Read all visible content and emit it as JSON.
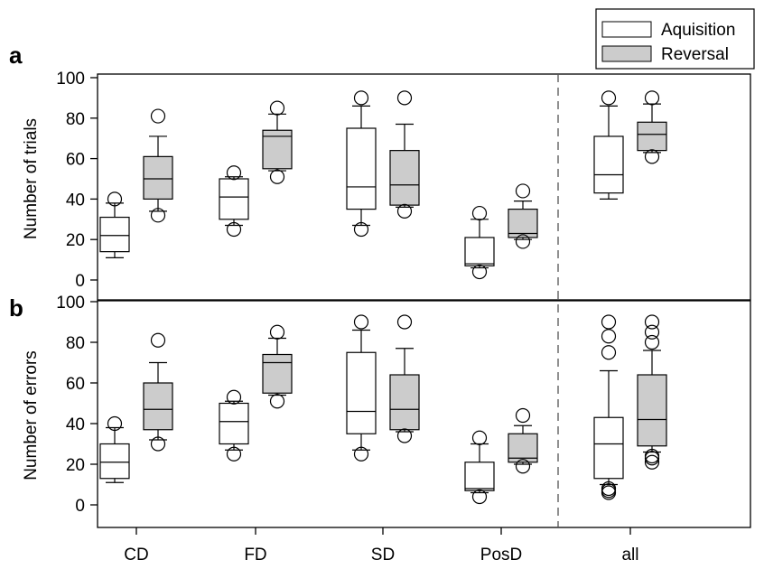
{
  "chart_data": [
    {
      "panel": "a",
      "type": "boxplot",
      "ylabel": "Number of trials",
      "ylim": [
        0,
        100
      ],
      "yticks": [
        0,
        20,
        40,
        60,
        80,
        100
      ],
      "categories": [
        "CD",
        "FD",
        "SD",
        "PosD",
        "all"
      ],
      "series": [
        {
          "name": "Aquisition",
          "color": "#ffffff",
          "boxes": [
            {
              "whisker_low": 11,
              "q1": 14,
              "median": 22,
              "q3": 31,
              "whisker_high": 38,
              "outliers": [
                40
              ]
            },
            {
              "whisker_low": 27,
              "q1": 30,
              "median": 41,
              "q3": 50,
              "whisker_high": 51,
              "outliers": [
                25,
                53
              ]
            },
            {
              "whisker_low": 27,
              "q1": 35,
              "median": 46,
              "q3": 75,
              "whisker_high": 86,
              "outliers": [
                25,
                90
              ]
            },
            {
              "whisker_low": 6,
              "q1": 7,
              "median": 8,
              "q3": 21,
              "whisker_high": 30,
              "outliers": [
                4,
                33
              ]
            },
            {
              "whisker_low": 40,
              "q1": 43,
              "median": 52,
              "q3": 71,
              "whisker_high": 86,
              "outliers": [
                90
              ]
            }
          ]
        },
        {
          "name": "Reversal",
          "color": "#cccccc",
          "boxes": [
            {
              "whisker_low": 34,
              "q1": 40,
              "median": 50,
              "q3": 61,
              "whisker_high": 71,
              "outliers": [
                32,
                81
              ]
            },
            {
              "whisker_low": 54,
              "q1": 55,
              "median": 71,
              "q3": 74,
              "whisker_high": 82,
              "outliers": [
                51,
                85
              ]
            },
            {
              "whisker_low": 36,
              "q1": 37,
              "median": 47,
              "q3": 64,
              "whisker_high": 77,
              "outliers": [
                34,
                90
              ]
            },
            {
              "whisker_low": 20,
              "q1": 21,
              "median": 23,
              "q3": 35,
              "whisker_high": 39,
              "outliers": [
                19,
                44
              ]
            },
            {
              "whisker_low": 63,
              "q1": 64,
              "median": 72,
              "q3": 78,
              "whisker_high": 87,
              "outliers": [
                61,
                90
              ]
            }
          ]
        }
      ]
    },
    {
      "panel": "b",
      "type": "boxplot",
      "ylabel": "Number of errors",
      "ylim": [
        0,
        100
      ],
      "yticks": [
        0,
        20,
        40,
        60,
        80,
        100
      ],
      "categories": [
        "CD",
        "FD",
        "SD",
        "PosD",
        "all"
      ],
      "series": [
        {
          "name": "Aquisition",
          "color": "#ffffff",
          "boxes": [
            {
              "whisker_low": 11,
              "q1": 13,
              "median": 21,
              "q3": 30,
              "whisker_high": 38,
              "outliers": [
                40
              ]
            },
            {
              "whisker_low": 27,
              "q1": 30,
              "median": 41,
              "q3": 50,
              "whisker_high": 51,
              "outliers": [
                25,
                53
              ]
            },
            {
              "whisker_low": 27,
              "q1": 35,
              "median": 46,
              "q3": 75,
              "whisker_high": 86,
              "outliers": [
                25,
                90
              ]
            },
            {
              "whisker_low": 6,
              "q1": 7,
              "median": 8,
              "q3": 21,
              "whisker_high": 30,
              "outliers": [
                4,
                33
              ]
            },
            {
              "whisker_low": 10,
              "q1": 13,
              "median": 30,
              "q3": 43,
              "whisker_high": 66,
              "outliers": [
                6,
                7,
                8,
                75,
                83,
                90
              ]
            }
          ]
        },
        {
          "name": "Reversal",
          "color": "#cccccc",
          "boxes": [
            {
              "whisker_low": 32,
              "q1": 37,
              "median": 47,
              "q3": 60,
              "whisker_high": 70,
              "outliers": [
                30,
                81
              ]
            },
            {
              "whisker_low": 54,
              "q1": 55,
              "median": 70,
              "q3": 74,
              "whisker_high": 82,
              "outliers": [
                51,
                85
              ]
            },
            {
              "whisker_low": 36,
              "q1": 37,
              "median": 47,
              "q3": 64,
              "whisker_high": 77,
              "outliers": [
                34,
                90
              ]
            },
            {
              "whisker_low": 20,
              "q1": 21,
              "median": 23,
              "q3": 35,
              "whisker_high": 39,
              "outliers": [
                19,
                44
              ]
            },
            {
              "whisker_low": 26,
              "q1": 29,
              "median": 42,
              "q3": 64,
              "whisker_high": 76,
              "outliers": [
                21,
                23,
                24,
                80,
                85,
                90
              ]
            }
          ]
        }
      ]
    }
  ],
  "legend": {
    "placement": "top-right",
    "items": [
      {
        "label": "Aquisition",
        "color": "#ffffff"
      },
      {
        "label": "Reversal",
        "color": "#cccccc"
      }
    ]
  },
  "separator": {
    "style": "dashed",
    "between": [
      "PosD",
      "all"
    ]
  }
}
